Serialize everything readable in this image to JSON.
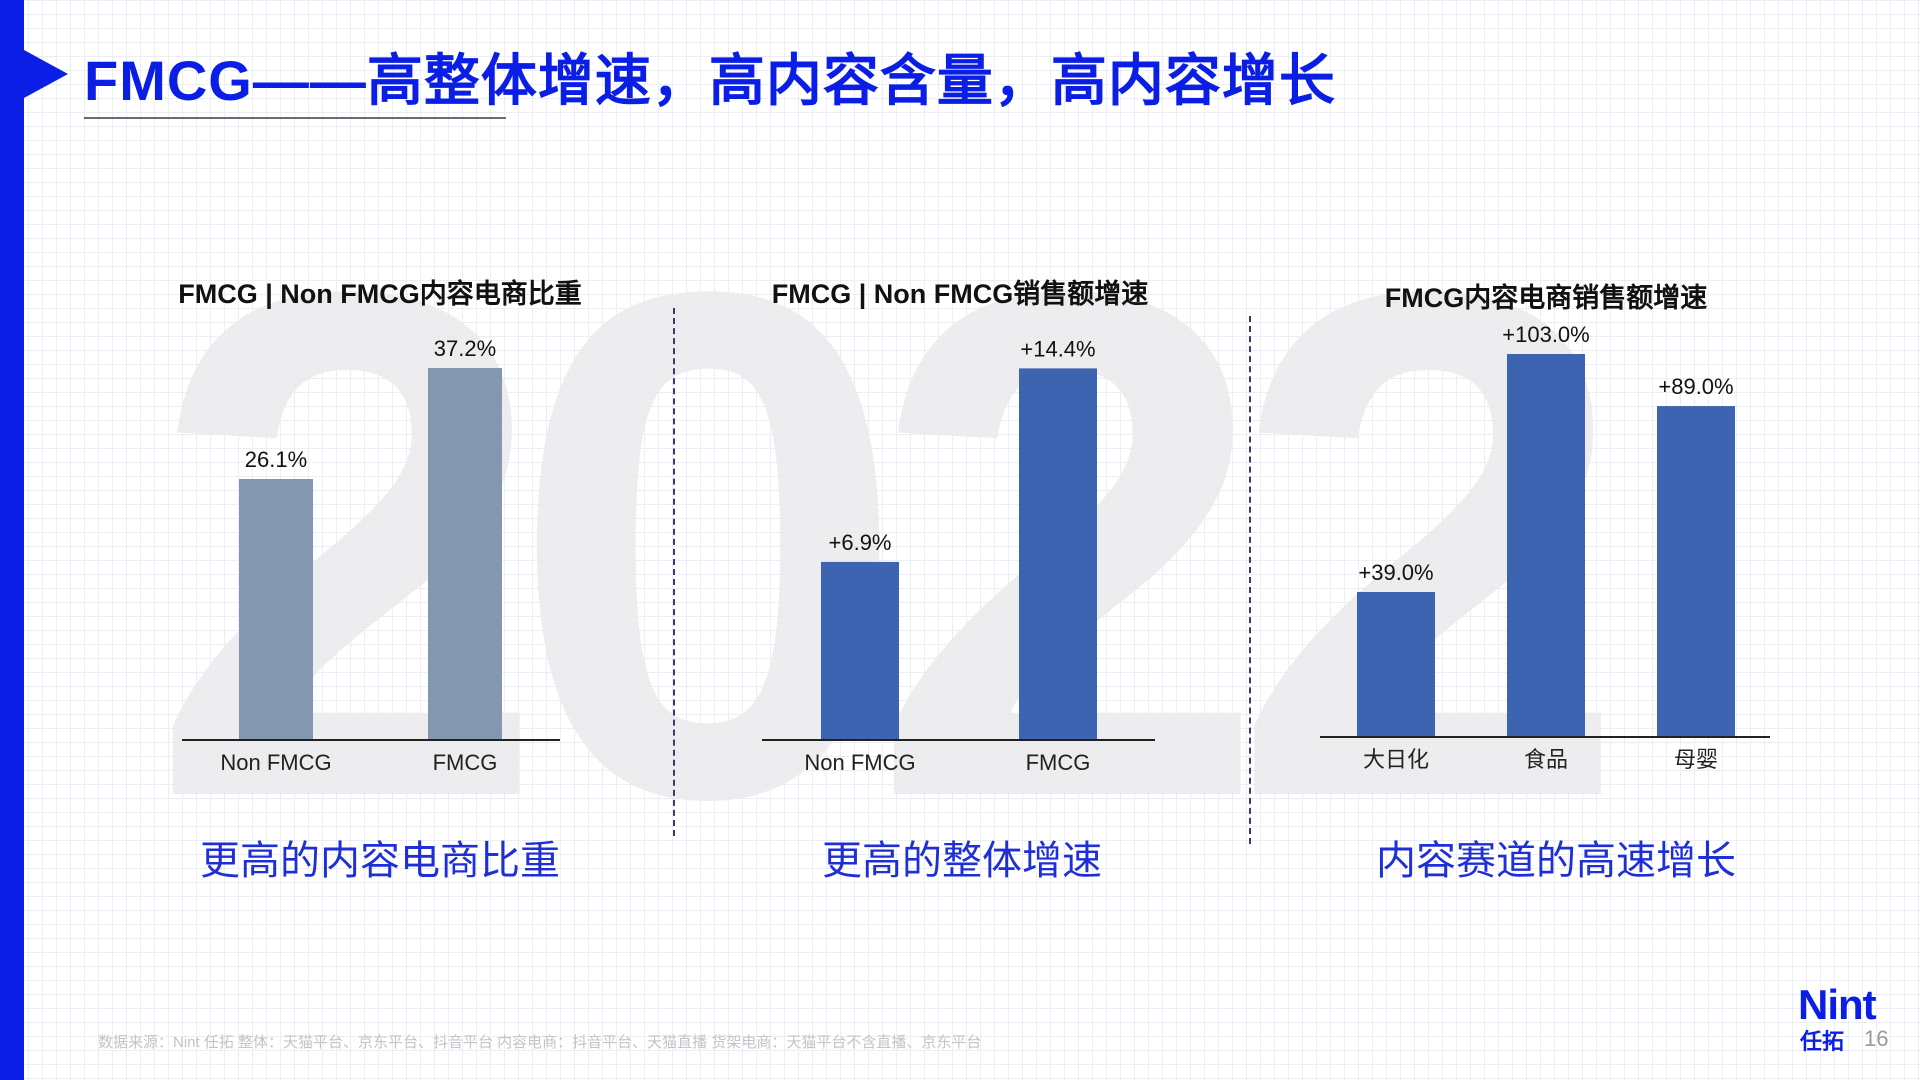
{
  "slide": {
    "title": "FMCG——高整体增速，高内容含量，高内容增长",
    "watermark": "2022",
    "page_number": "16",
    "logo": {
      "main": "Nint",
      "sub": "任拓"
    },
    "source": "数据来源：Nint 任拓    整体：天猫平台、京东平台、抖音平台    内容电商：抖音平台、天猫直播    货架电商：天猫平台不含直播、京东平台"
  },
  "colors": {
    "accent": "#0a1ee6",
    "bar_grey": "#8497b0",
    "bar_blue": "#3c64b0",
    "caption": "#1f2fd6"
  },
  "captions": [
    "更高的内容电商比重",
    "更高的整体增速",
    "内容赛道的高速增长"
  ],
  "chart_data": [
    {
      "type": "bar",
      "title": "FMCG | Non FMCG内容电商比重",
      "categories": [
        "Non FMCG",
        "FMCG"
      ],
      "values": [
        26.1,
        37.2
      ],
      "labels": [
        "26.1%",
        "37.2%"
      ],
      "unit": "%",
      "ylim": [
        0,
        40
      ],
      "color": "#8497b0",
      "grid": false,
      "legend": "none"
    },
    {
      "type": "bar",
      "title": "FMCG | Non FMCG销售额增速",
      "categories": [
        "Non FMCG",
        "FMCG"
      ],
      "values": [
        6.9,
        14.4
      ],
      "labels": [
        "+6.9%",
        "+14.4%"
      ],
      "unit": "%",
      "ylim": [
        0,
        15.5
      ],
      "color": "#3c64b0",
      "grid": false,
      "legend": "none"
    },
    {
      "type": "bar",
      "title": "FMCG内容电商销售额增速",
      "categories": [
        "大日化",
        "食品",
        "母婴"
      ],
      "values": [
        39.0,
        103.0,
        89.0
      ],
      "labels": [
        "+39.0%",
        "+103.0%",
        "+89.0%"
      ],
      "unit": "%",
      "ylim": [
        0,
        103
      ],
      "color": "#3c64b0",
      "grid": false,
      "legend": "none"
    }
  ]
}
